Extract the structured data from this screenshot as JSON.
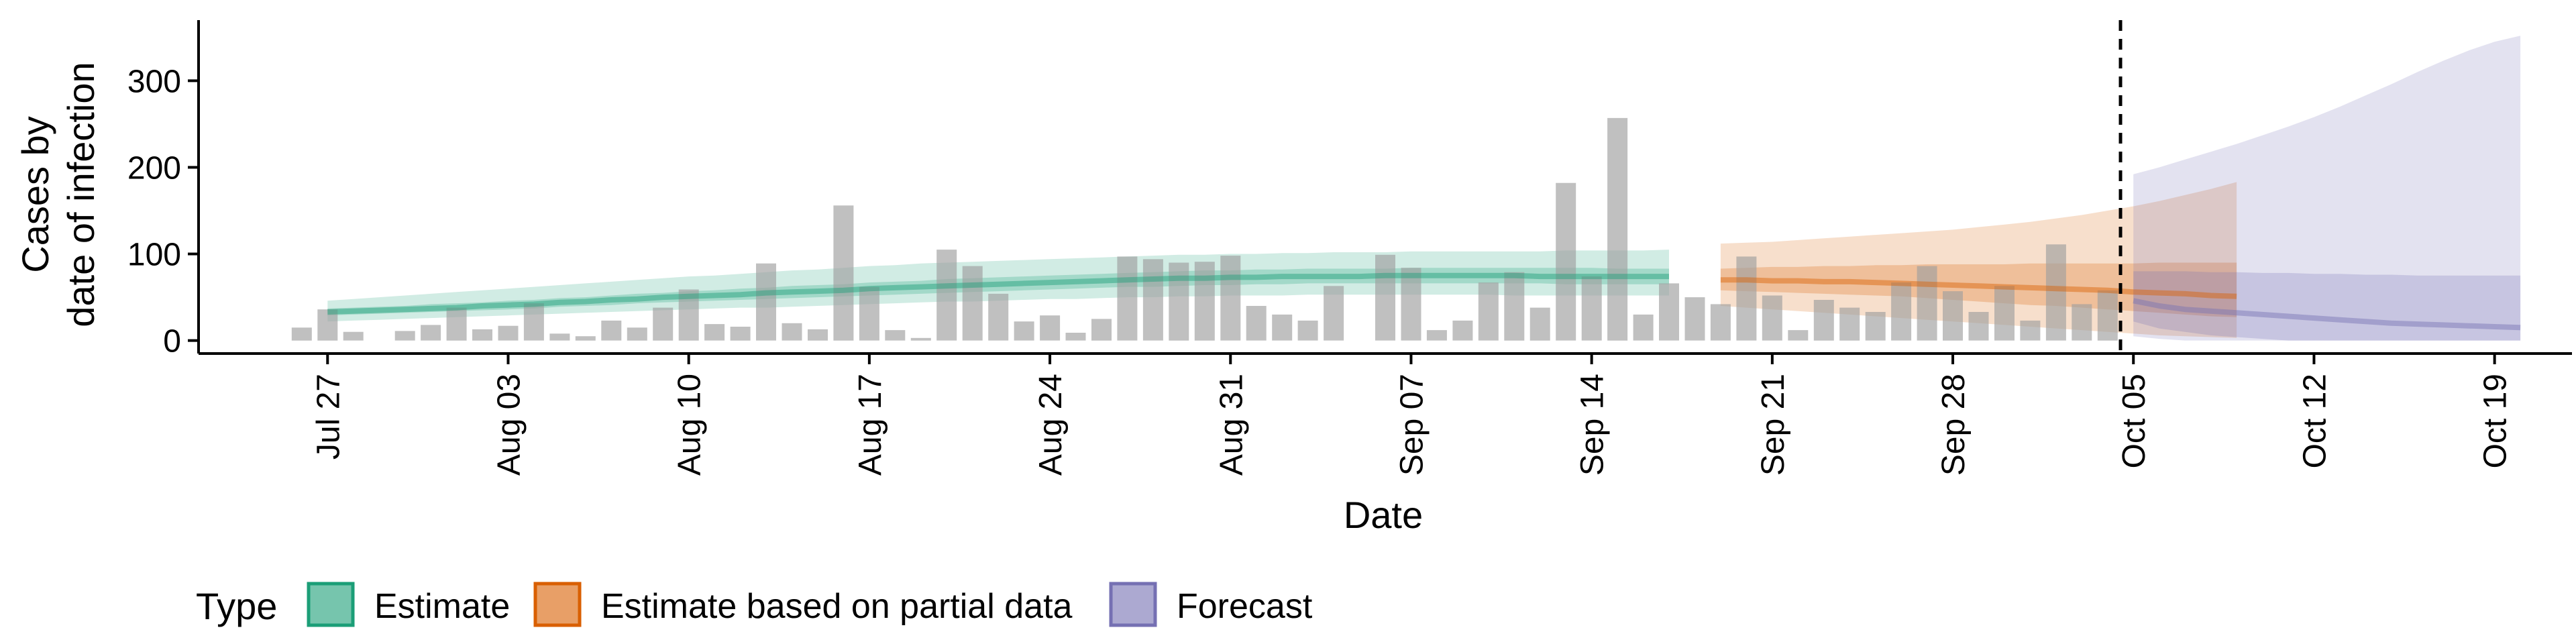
{
  "chart_data": {
    "type": "bar",
    "xlabel": "Date",
    "ylabel_lines": [
      "Cases by",
      "date of infection"
    ],
    "ylim": [
      -15,
      370
    ],
    "x_start": "2020-07-22",
    "x_end": "2020-10-22",
    "y_ticks": [
      0,
      100,
      200,
      300
    ],
    "x_ticks": [
      {
        "date": "2020-07-27",
        "label": "Jul 27"
      },
      {
        "date": "2020-08-03",
        "label": "Aug 03"
      },
      {
        "date": "2020-08-10",
        "label": "Aug 10"
      },
      {
        "date": "2020-08-17",
        "label": "Aug 17"
      },
      {
        "date": "2020-08-24",
        "label": "Aug 24"
      },
      {
        "date": "2020-08-31",
        "label": "Aug 31"
      },
      {
        "date": "2020-09-07",
        "label": "Sep 07"
      },
      {
        "date": "2020-09-14",
        "label": "Sep 14"
      },
      {
        "date": "2020-09-21",
        "label": "Sep 21"
      },
      {
        "date": "2020-09-28",
        "label": "Sep 28"
      },
      {
        "date": "2020-10-05",
        "label": "Oct 05"
      },
      {
        "date": "2020-10-12",
        "label": "Oct 12"
      },
      {
        "date": "2020-10-19",
        "label": "Oct 19"
      }
    ],
    "vline_date": "2020-10-04",
    "bars": {
      "start": "2020-07-26",
      "values": [
        15,
        36,
        10,
        0,
        11,
        18,
        38,
        13,
        17,
        43,
        8,
        5,
        23,
        15,
        38,
        59,
        19,
        16,
        89,
        20,
        13,
        156,
        62,
        12,
        3,
        105,
        86,
        54,
        22,
        29,
        9,
        25,
        97,
        94,
        90,
        91,
        98,
        40,
        30,
        23,
        63,
        0,
        99,
        84,
        12,
        23,
        67,
        79,
        38,
        182,
        74,
        257,
        30,
        66,
        50,
        42,
        97,
        52,
        12,
        47,
        38,
        33,
        67,
        86,
        57,
        33,
        63,
        23,
        111,
        42,
        58
      ]
    },
    "series": [
      {
        "name": "Estimate",
        "color": "#1B9E77",
        "start": "2020-07-27",
        "median": [
          33,
          34,
          35,
          36,
          37,
          38,
          40,
          41,
          42,
          44,
          45,
          47,
          48,
          50,
          51,
          52,
          53,
          55,
          56,
          57,
          58,
          60,
          61,
          62,
          63,
          64,
          65,
          66,
          67,
          68,
          69,
          70,
          71,
          72,
          72,
          73,
          73,
          74,
          74,
          74,
          74,
          75,
          75,
          75,
          75,
          75,
          75,
          74,
          74,
          74,
          74,
          74,
          74
        ],
        "inner_lower": [
          29,
          30,
          31,
          32,
          33,
          34,
          35,
          36,
          37,
          39,
          40,
          41,
          43,
          44,
          45,
          46,
          47,
          48,
          49,
          50,
          51,
          52,
          53,
          54,
          55,
          56,
          57,
          58,
          59,
          60,
          61,
          62,
          62,
          63,
          64,
          64,
          65,
          65,
          66,
          66,
          66,
          66,
          66,
          66,
          66,
          66,
          66,
          66,
          65,
          65,
          65,
          65,
          65
        ],
        "inner_upper": [
          37,
          38,
          39,
          40,
          42,
          43,
          44,
          46,
          47,
          49,
          50,
          52,
          54,
          55,
          57,
          58,
          60,
          61,
          63,
          64,
          65,
          67,
          68,
          69,
          71,
          72,
          73,
          74,
          75,
          76,
          77,
          78,
          79,
          80,
          81,
          81,
          82,
          82,
          83,
          83,
          83,
          83,
          84,
          84,
          84,
          84,
          84,
          84,
          84,
          84,
          83,
          83,
          83
        ],
        "outer_lower": [
          22,
          23,
          24,
          25,
          26,
          27,
          28,
          29,
          30,
          31,
          32,
          33,
          34,
          35,
          36,
          37,
          38,
          38,
          39,
          40,
          41,
          42,
          43,
          44,
          45,
          45,
          46,
          47,
          48,
          48,
          49,
          50,
          50,
          51,
          51,
          52,
          52,
          52,
          53,
          53,
          53,
          53,
          53,
          53,
          53,
          53,
          52,
          52,
          52,
          52,
          52,
          52,
          52
        ],
        "outer_upper": [
          46,
          48,
          50,
          52,
          54,
          56,
          58,
          60,
          62,
          64,
          66,
          68,
          70,
          72,
          74,
          75,
          77,
          79,
          81,
          82,
          84,
          86,
          87,
          89,
          90,
          91,
          92,
          93,
          94,
          95,
          96,
          97,
          98,
          99,
          99,
          100,
          100,
          101,
          101,
          102,
          102,
          102,
          103,
          103,
          103,
          103,
          103,
          103,
          104,
          104,
          104,
          104,
          105
        ]
      },
      {
        "name": "Estimate based on partial data",
        "color": "#D95F02",
        "start": "2020-09-19",
        "median": [
          70,
          70,
          69,
          69,
          68,
          68,
          67,
          66,
          65,
          64,
          63,
          62,
          61,
          60,
          59,
          58,
          56,
          55,
          54,
          52,
          51
        ],
        "inner_lower": [
          58,
          57,
          56,
          55,
          54,
          53,
          52,
          51,
          49,
          47,
          45,
          43,
          41,
          40,
          38,
          36,
          34,
          32,
          30,
          28,
          27
        ],
        "inner_upper": [
          83,
          84,
          85,
          85,
          86,
          86,
          87,
          87,
          88,
          88,
          88,
          88,
          89,
          89,
          89,
          89,
          89,
          90,
          90,
          90,
          90
        ],
        "outer_lower": [
          40,
          38,
          36,
          34,
          32,
          30,
          28,
          26,
          24,
          22,
          20,
          18,
          16,
          14,
          12,
          10,
          8,
          6,
          5,
          4,
          3
        ],
        "outer_upper": [
          112,
          113,
          114,
          116,
          118,
          120,
          122,
          124,
          126,
          128,
          131,
          134,
          137,
          141,
          145,
          150,
          155,
          161,
          168,
          175,
          183
        ]
      },
      {
        "name": "Forecast",
        "color": "#7570B3",
        "start": "2020-10-05",
        "median": [
          46,
          40,
          36,
          34,
          32,
          30,
          28,
          26,
          24,
          22,
          20,
          19,
          18,
          17,
          16,
          15
        ],
        "inner_lower": [
          22,
          14,
          10,
          6,
          4,
          2,
          0,
          0,
          0,
          0,
          0,
          0,
          0,
          0,
          0,
          0
        ],
        "inner_upper": [
          80,
          80,
          80,
          79,
          79,
          78,
          78,
          77,
          77,
          76,
          76,
          75,
          75,
          75,
          75,
          75
        ],
        "outer_lower": [
          5,
          2,
          0,
          0,
          0,
          0,
          0,
          0,
          0,
          0,
          0,
          0,
          0,
          0,
          0,
          0
        ],
        "outer_upper": [
          192,
          200,
          209,
          218,
          227,
          237,
          247,
          258,
          270,
          283,
          296,
          310,
          323,
          335,
          345,
          352
        ]
      }
    ],
    "legend": {
      "title": "Type",
      "entries": [
        "Estimate",
        "Estimate based on partial data",
        "Forecast"
      ],
      "placement": "bottom"
    },
    "grid": false
  }
}
